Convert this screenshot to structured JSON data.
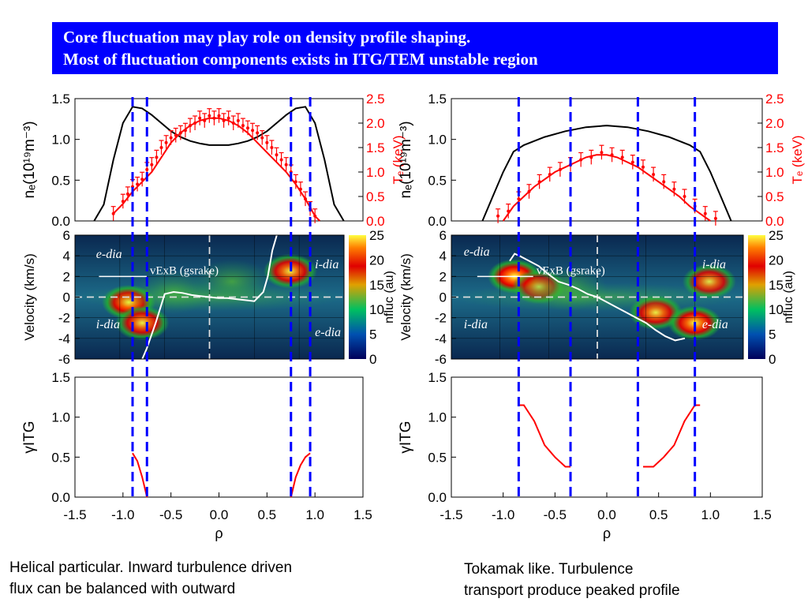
{
  "header": {
    "line1": "Core fluctuation may play role on density profile shaping.",
    "line2": "Most of fluctuation components exists in ITG/TEM unstable region"
  },
  "captions": {
    "left_line1": "Helical particular. Inward turbulence driven",
    "left_line2": "flux can be balanced with outward",
    "right_line1": "Tokamak like. Turbulence",
    "right_line2": "transport produce peaked profile"
  },
  "colors": {
    "banner": "#0000ff",
    "marker_lines": "#0000ff",
    "te_red": "#ff0000",
    "ne_black": "#000000",
    "velocity_white": "#ffffff"
  },
  "chart_data": [
    {
      "id": "left",
      "panels": [
        {
          "type": "line",
          "ylabel": "ne(10¹⁹m⁻³)",
          "ylim": [
            0,
            1.5
          ],
          "yticks": [
            "0.0",
            "0.5",
            "1.0",
            "1.5"
          ],
          "y2label": "Te (keV)",
          "y2lim": [
            0,
            2.5
          ],
          "y2ticks": [
            "0.0",
            "0.5",
            "1.0",
            "1.5",
            "2.0",
            "2.5"
          ],
          "xlim": [
            -1.5,
            1.5
          ],
          "series": [
            {
              "x": [
                -1.3,
                -1.2,
                -1.1,
                -1.0,
                -0.9,
                -0.8,
                -0.7,
                -0.6,
                -0.5,
                -0.4,
                -0.3,
                -0.2,
                -0.1,
                0.0,
                0.1,
                0.2,
                0.3,
                0.4,
                0.5,
                0.6,
                0.7,
                0.8,
                0.9,
                1.0,
                1.1,
                1.2,
                1.3
              ],
              "y": [
                0.0,
                0.2,
                0.75,
                1.2,
                1.4,
                1.38,
                1.3,
                1.2,
                1.1,
                1.03,
                0.98,
                0.95,
                0.93,
                0.93,
                0.93,
                0.95,
                0.98,
                1.03,
                1.1,
                1.2,
                1.3,
                1.38,
                1.4,
                1.2,
                0.75,
                0.2,
                0.0
              ]
            },
            {
              "x": [
                -1.1,
                -1.0,
                -0.9,
                -0.8,
                -0.7,
                -0.6,
                -0.5,
                -0.4,
                -0.3,
                -0.2,
                -0.1,
                0.0,
                0.1,
                0.2,
                0.3,
                0.4,
                0.5,
                0.6,
                0.7,
                0.8,
                0.9,
                1.0,
                1.05
              ],
              "y": [
                0.15,
                0.35,
                0.6,
                0.8,
                1.0,
                1.3,
                1.6,
                1.8,
                1.95,
                2.05,
                2.1,
                2.1,
                2.05,
                1.95,
                1.8,
                1.6,
                1.4,
                1.2,
                1.0,
                0.75,
                0.45,
                0.1,
                0.0
              ]
            }
          ],
          "points": {
            "x": [
              -1.1,
              -1.0,
              -0.95,
              -0.9,
              -0.85,
              -0.8,
              -0.75,
              -0.7,
              -0.65,
              -0.6,
              -0.55,
              -0.5,
              -0.45,
              -0.4,
              -0.35,
              -0.3,
              -0.25,
              -0.2,
              -0.15,
              -0.1,
              -0.05,
              0.0,
              0.05,
              0.1,
              0.15,
              0.2,
              0.25,
              0.3,
              0.35,
              0.4,
              0.45,
              0.5,
              0.55,
              0.6,
              0.65,
              0.7,
              0.75,
              0.8,
              0.85,
              0.9,
              0.95,
              1.0
            ],
            "y": [
              0.15,
              0.4,
              0.55,
              0.7,
              0.75,
              0.85,
              1.05,
              1.15,
              1.3,
              1.5,
              1.6,
              1.7,
              1.75,
              1.8,
              1.85,
              1.95,
              2.0,
              2.1,
              2.05,
              2.15,
              2.1,
              2.15,
              2.05,
              2.1,
              2.0,
              2.05,
              1.95,
              1.9,
              1.85,
              1.8,
              1.7,
              1.6,
              1.5,
              1.35,
              1.25,
              1.15,
              1.0,
              0.8,
              0.65,
              0.45,
              0.25,
              0.1
            ]
          }
        },
        {
          "type": "heatmap",
          "ylabel": "Velocity (km/s)",
          "ylim": [
            -6,
            6
          ],
          "yticks": [
            "-6",
            "-4",
            "-2",
            "0",
            "2",
            "4",
            "6"
          ],
          "colorbar_label": "nfluc (au)",
          "colorbar_range": [
            0,
            25
          ],
          "colorbar_ticks": [
            "0",
            "5",
            "10",
            "15",
            "20",
            "25"
          ],
          "xlim": [
            -1.5,
            1.5
          ],
          "annotations": [
            "e-dia",
            "i-dia",
            "i-dia",
            "e-dia",
            "vExB (gsrake)"
          ],
          "blobs": [
            {
              "x": -0.9,
              "y": -0.5,
              "level": 25
            },
            {
              "x": -0.75,
              "y": -2.5,
              "level": 18
            },
            {
              "x": 0.9,
              "y": 2.5,
              "level": 18
            },
            {
              "x": 0.25,
              "y": 1.5,
              "level": 8
            },
            {
              "x": -0.4,
              "y": 0.5,
              "level": 6
            }
          ],
          "series": [
            {
              "name": "vExB (gsrake)",
              "x": [
                -0.75,
                -0.7,
                -0.6,
                -0.5,
                -0.4,
                -0.3,
                -0.2,
                -0.1,
                0.0,
                0.1,
                0.2,
                0.3,
                0.4,
                0.5,
                0.6,
                0.65,
                0.7,
                0.75
              ],
              "y": [
                -6,
                -5,
                -2.5,
                0.3,
                0.5,
                0.4,
                0.2,
                0.1,
                0.0,
                -0.1,
                -0.1,
                -0.2,
                -0.3,
                -0.4,
                0.5,
                2.0,
                4.5,
                6
              ]
            }
          ]
        },
        {
          "type": "line",
          "ylabel": "γITG",
          "ylim": [
            0,
            1.5
          ],
          "yticks": [
            "0.0",
            "0.5",
            "1.0",
            "1.5"
          ],
          "xlabel": "ρ",
          "xlim": [
            -1.5,
            1.5
          ],
          "xticks": [
            "-1.5",
            "-1.0",
            "-0.5",
            "0.0",
            "0.5",
            "1.0",
            "1.5"
          ],
          "series": [
            {
              "x": [
                -0.9,
                -0.85,
                -0.8,
                -0.75
              ],
              "y": [
                0.55,
                0.45,
                0.25,
                0.0
              ]
            },
            {
              "x": [
                0.75,
                0.8,
                0.85,
                0.9,
                0.95
              ],
              "y": [
                0.0,
                0.25,
                0.4,
                0.5,
                0.55
              ]
            }
          ]
        }
      ],
      "vlines": [
        -0.9,
        -0.75,
        0.75,
        0.95
      ]
    },
    {
      "id": "right",
      "panels": [
        {
          "type": "line",
          "ylabel": "ne(10¹⁹m⁻³)",
          "ylim": [
            0,
            1.5
          ],
          "yticks": [
            "0.0",
            "0.5",
            "1.0",
            "1.5"
          ],
          "y2label": "Te (keV)",
          "y2lim": [
            0,
            2.5
          ],
          "y2ticks": [
            "0.0",
            "0.5",
            "1.0",
            "1.5",
            "2.0",
            "2.5"
          ],
          "xlim": [
            -1.5,
            1.5
          ],
          "series": [
            {
              "x": [
                -1.2,
                -1.1,
                -1.0,
                -0.9,
                -0.8,
                -0.6,
                -0.4,
                -0.2,
                0.0,
                0.2,
                0.4,
                0.6,
                0.8,
                0.9,
                1.0,
                1.1,
                1.2
              ],
              "y": [
                0.0,
                0.3,
                0.6,
                0.85,
                0.93,
                1.03,
                1.1,
                1.15,
                1.17,
                1.15,
                1.1,
                1.03,
                0.93,
                0.85,
                0.6,
                0.3,
                0.0
              ]
            },
            {
              "x": [
                -1.0,
                -0.9,
                -0.8,
                -0.7,
                -0.6,
                -0.5,
                -0.4,
                -0.3,
                -0.2,
                -0.1,
                0.0,
                0.1,
                0.2,
                0.3,
                0.4,
                0.5,
                0.6,
                0.7,
                0.8,
                0.9,
                1.0
              ],
              "y": [
                0.0,
                0.3,
                0.5,
                0.7,
                0.85,
                1.0,
                1.1,
                1.2,
                1.3,
                1.35,
                1.35,
                1.3,
                1.2,
                1.1,
                0.95,
                0.8,
                0.65,
                0.5,
                0.3,
                0.15,
                0.0
              ]
            }
          ],
          "points": {
            "x": [
              -1.05,
              -0.95,
              -0.85,
              -0.75,
              -0.65,
              -0.55,
              -0.45,
              -0.35,
              -0.25,
              -0.15,
              -0.05,
              0.05,
              0.15,
              0.25,
              0.35,
              0.45,
              0.55,
              0.65,
              0.75,
              0.85,
              0.95,
              1.05
            ],
            "y": [
              0.1,
              0.2,
              0.45,
              0.6,
              0.8,
              0.95,
              1.05,
              1.15,
              1.25,
              1.3,
              1.4,
              1.35,
              1.3,
              1.2,
              1.1,
              0.95,
              0.8,
              0.65,
              0.5,
              0.3,
              0.15,
              0.05
            ]
          }
        },
        {
          "type": "heatmap",
          "ylabel": "Velocity (km/s)",
          "ylim": [
            -6,
            6
          ],
          "yticks": [
            "-6",
            "-4",
            "-2",
            "0",
            "2",
            "4",
            "6"
          ],
          "colorbar_label": "nfluc (au)",
          "colorbar_range": [
            0,
            25
          ],
          "colorbar_ticks": [
            "0",
            "5",
            "10",
            "15",
            "20",
            "25"
          ],
          "xlim": [
            -1.5,
            1.5
          ],
          "annotations": [
            "e-dia",
            "i-dia",
            "i-dia",
            "e-dia",
            "vExB (gsrake)"
          ],
          "blobs": [
            {
              "x": -0.85,
              "y": 2.0,
              "level": 24
            },
            {
              "x": -0.6,
              "y": 1.0,
              "level": 14
            },
            {
              "x": 0.6,
              "y": -1.5,
              "level": 18
            },
            {
              "x": 1.0,
              "y": -2.5,
              "level": 20
            },
            {
              "x": 1.15,
              "y": 1.5,
              "level": 16
            },
            {
              "x": -0.3,
              "y": 0.8,
              "level": 8
            }
          ],
          "series": [
            {
              "name": "vExB (gsrake)",
              "x": [
                -0.9,
                -0.85,
                -0.8,
                -0.7,
                -0.6,
                -0.5,
                -0.4,
                -0.3,
                -0.2,
                -0.1,
                0.0,
                0.1,
                0.2,
                0.3,
                0.4,
                0.5,
                0.6,
                0.7,
                0.8,
                0.9
              ],
              "y": [
                3.5,
                4.2,
                4.0,
                3.5,
                3.0,
                2.2,
                1.5,
                1.2,
                0.8,
                0.3,
                0.0,
                -0.5,
                -1.0,
                -1.5,
                -2.0,
                -2.5,
                -3.2,
                -3.8,
                -4.2,
                -4.0
              ]
            }
          ]
        },
        {
          "type": "line",
          "ylabel": "γITG",
          "ylim": [
            0,
            1.5
          ],
          "yticks": [
            "0.0",
            "0.5",
            "1.0",
            "1.5"
          ],
          "xlabel": "ρ",
          "xlim": [
            -1.5,
            1.5
          ],
          "xticks": [
            "-1.5",
            "-1.0",
            "-0.5",
            "0.0",
            "0.5",
            "1.0",
            "1.5"
          ],
          "series": [
            {
              "x": [
                -0.85,
                -0.8,
                -0.7,
                -0.6,
                -0.5,
                -0.4,
                -0.35
              ],
              "y": [
                1.15,
                1.15,
                0.95,
                0.65,
                0.5,
                0.38,
                0.38
              ]
            },
            {
              "x": [
                0.35,
                0.45,
                0.55,
                0.65,
                0.75,
                0.85,
                0.9
              ],
              "y": [
                0.38,
                0.38,
                0.5,
                0.65,
                0.95,
                1.15,
                1.15
              ]
            }
          ]
        }
      ],
      "vlines": [
        -0.85,
        -0.35,
        0.3,
        0.85
      ]
    }
  ]
}
